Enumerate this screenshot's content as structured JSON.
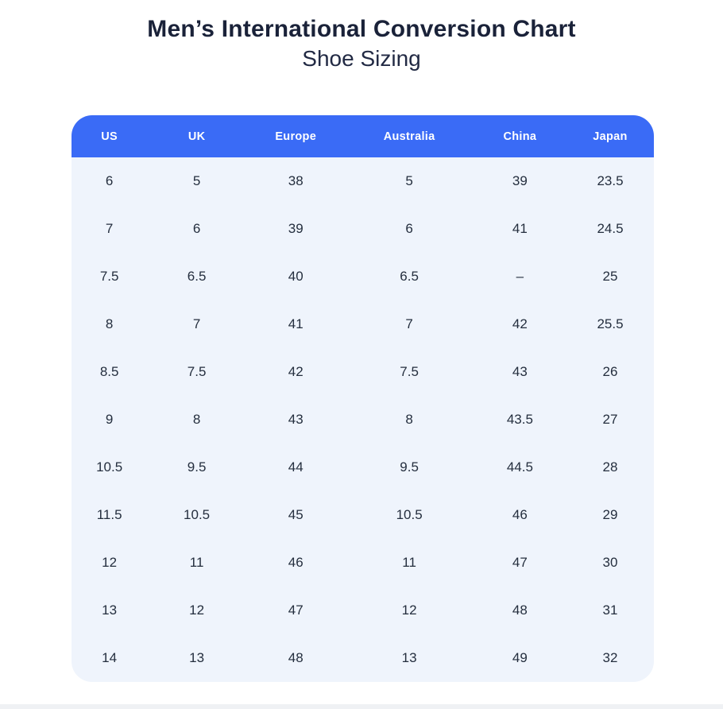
{
  "header": {
    "title": "Men’s International Conversion Chart",
    "subtitle": "Shoe Sizing"
  },
  "chart_data": {
    "type": "table",
    "title": "Men’s International Conversion Chart",
    "subtitle": "Shoe Sizing",
    "columns": [
      "US",
      "UK",
      "Europe",
      "Australia",
      "China",
      "Japan"
    ],
    "rows": [
      [
        "6",
        "5",
        "38",
        "5",
        "39",
        "23.5"
      ],
      [
        "7",
        "6",
        "39",
        "6",
        "41",
        "24.5"
      ],
      [
        "7.5",
        "6.5",
        "40",
        "6.5",
        "–",
        "25"
      ],
      [
        "8",
        "7",
        "41",
        "7",
        "42",
        "25.5"
      ],
      [
        "8.5",
        "7.5",
        "42",
        "7.5",
        "43",
        "26"
      ],
      [
        "9",
        "8",
        "43",
        "8",
        "43.5",
        "27"
      ],
      [
        "10.5",
        "9.5",
        "44",
        "9.5",
        "44.5",
        "28"
      ],
      [
        "11.5",
        "10.5",
        "45",
        "10.5",
        "46",
        "29"
      ],
      [
        "12",
        "11",
        "46",
        "11",
        "47",
        "30"
      ],
      [
        "13",
        "12",
        "47",
        "12",
        "48",
        "31"
      ],
      [
        "14",
        "13",
        "48",
        "13",
        "49",
        "32"
      ]
    ]
  },
  "colors": {
    "header_bg": "#3a6bf6",
    "header_text": "#ffffff",
    "body_bg": "#eff4fc",
    "title_text": "#1a2239",
    "subtitle_text": "#222a44",
    "cell_text": "#242e3e"
  }
}
